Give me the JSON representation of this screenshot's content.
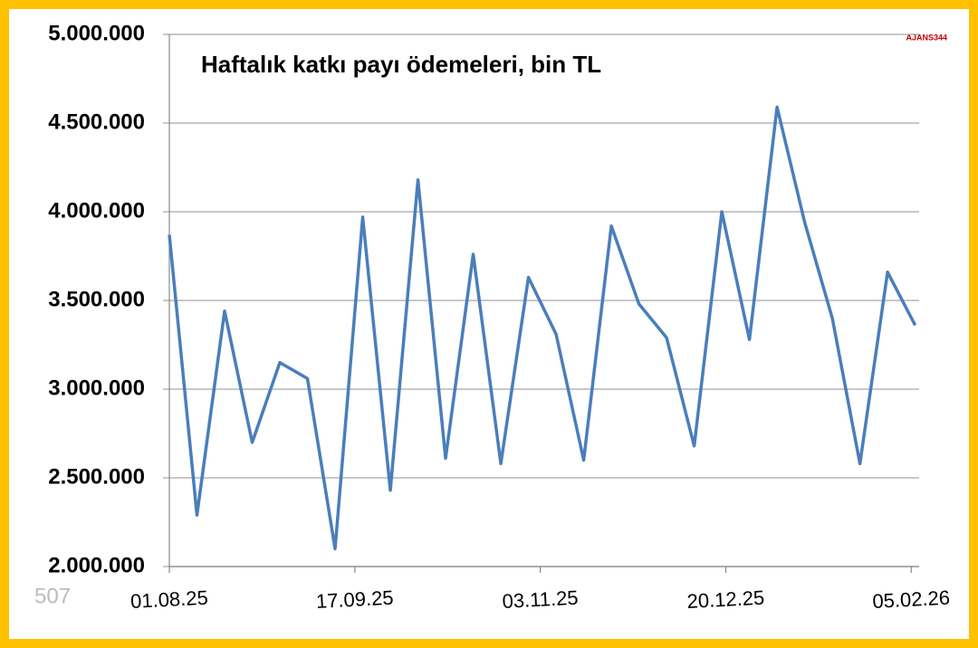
{
  "chart_data": {
    "type": "line",
    "title": "Haftalık katkı payı ödemeleri, bin TL",
    "watermark": "AJANS344",
    "annotation": "507",
    "x": [
      "2025-08-01",
      "2025-08-08",
      "2025-08-15",
      "2025-08-22",
      "2025-08-29",
      "2025-09-05",
      "2025-09-12",
      "2025-09-19",
      "2025-09-26",
      "2025-10-03",
      "2025-10-10",
      "2025-10-17",
      "2025-10-24",
      "2025-10-31",
      "2025-11-07",
      "2025-11-14",
      "2025-11-21",
      "2025-11-28",
      "2025-12-05",
      "2025-12-12",
      "2025-12-19",
      "2025-12-26",
      "2026-01-02",
      "2026-01-09",
      "2026-01-16",
      "2026-01-23",
      "2026-01-30",
      "2026-02-06"
    ],
    "series": [
      {
        "name": "Haftalık katkı payı ödemeleri",
        "color": "#4a7ebb",
        "values": [
          3870000,
          2290000,
          3440000,
          2700000,
          3150000,
          3060000,
          2100000,
          3970000,
          2430000,
          4180000,
          2610000,
          3760000,
          2580000,
          3630000,
          3310000,
          2600000,
          3920000,
          3480000,
          3290000,
          2680000,
          4000000,
          3280000,
          4590000,
          3940000,
          3400000,
          2580000,
          3660000,
          3360000
        ]
      }
    ],
    "xlim": [
      "2025-08-01",
      "2026-02-07"
    ],
    "xticks": [
      {
        "value": "2025-08-01",
        "label": "01.08.25"
      },
      {
        "value": "2025-09-17",
        "label": "17.09.25"
      },
      {
        "value": "2025-11-03",
        "label": "03.11.25"
      },
      {
        "value": "2025-12-20",
        "label": "20.12.25"
      },
      {
        "value": "2026-02-05",
        "label": "05.02.26"
      }
    ],
    "ylim": [
      2000000,
      5000000
    ],
    "yticks": [
      {
        "value": 2000000,
        "label": "2.000.000"
      },
      {
        "value": 2500000,
        "label": "2.500.000"
      },
      {
        "value": 3000000,
        "label": "3.000.000"
      },
      {
        "value": 3500000,
        "label": "3.500.000"
      },
      {
        "value": 4000000,
        "label": "4.000.000"
      },
      {
        "value": 4500000,
        "label": "4.500.000"
      },
      {
        "value": 5000000,
        "label": "5.000.000"
      }
    ],
    "grid": true
  }
}
